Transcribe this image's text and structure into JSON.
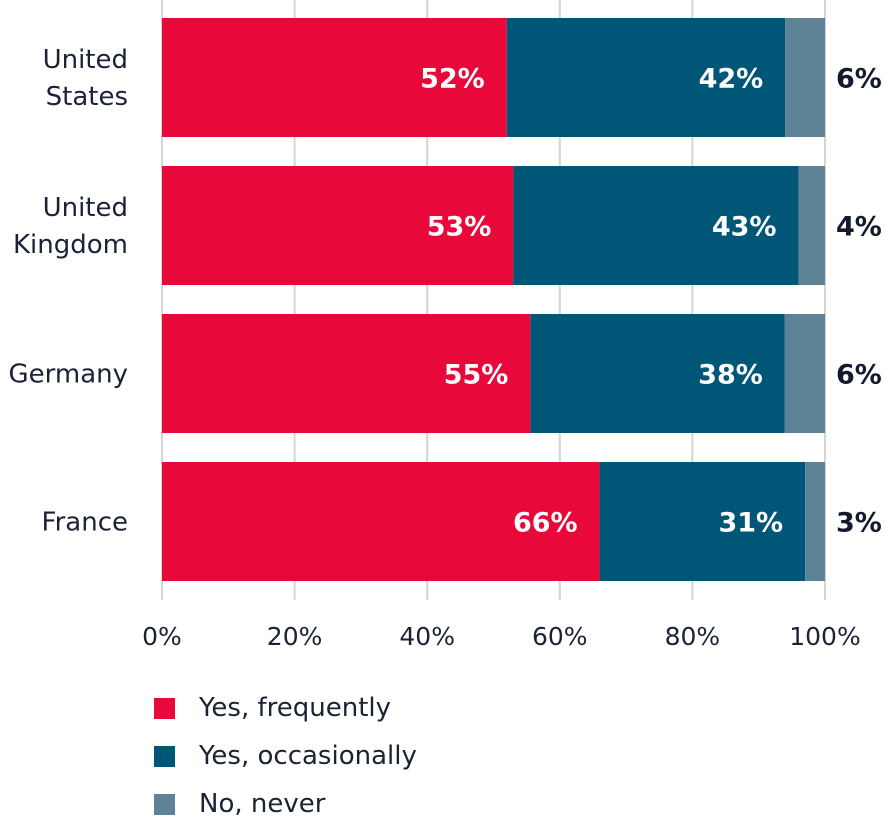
{
  "chart_data": {
    "type": "bar",
    "orientation": "horizontal",
    "stacked": true,
    "categories": [
      [
        "United",
        "States"
      ],
      [
        "United",
        "Kingdom"
      ],
      [
        "Germany"
      ],
      [
        "France"
      ]
    ],
    "series": [
      {
        "name": "Yes, frequently",
        "color": "#e8083a",
        "values": [
          52,
          53,
          55,
          66
        ]
      },
      {
        "name": "Yes, occasionally",
        "color": "#005677",
        "values": [
          42,
          43,
          38,
          31
        ]
      },
      {
        "name": "No, never",
        "color": "#5e8296",
        "values": [
          6,
          4,
          6,
          3
        ]
      }
    ],
    "xlim": [
      0,
      100
    ],
    "xticks": [
      "0%",
      "20%",
      "40%",
      "60%",
      "80%",
      "100%"
    ],
    "grid": true,
    "legend": "bottom-left"
  }
}
